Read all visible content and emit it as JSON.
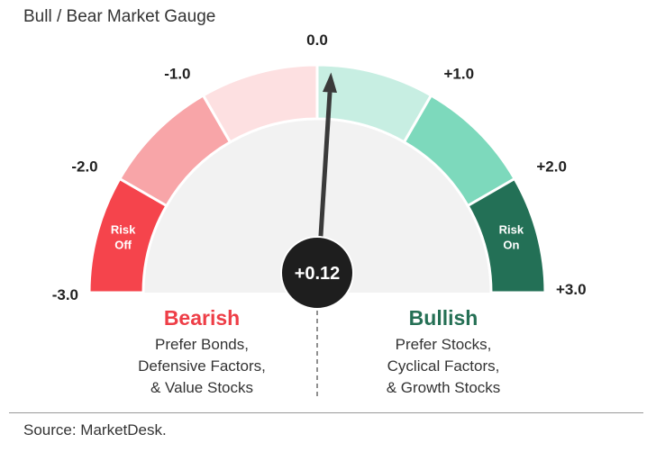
{
  "title": "Bull / Bear Market Gauge",
  "colors": {
    "segments": [
      "#f5444c",
      "#f8a5a8",
      "#fde0e1",
      "#c7eee2",
      "#7dd9bc",
      "#237056"
    ],
    "bearish": "#ee3e47",
    "bullish": "#257055",
    "inner": "#f2f2f2",
    "needle": "#3a3a3a",
    "value_bubble": "#1e1e1e"
  },
  "chart_data": {
    "type": "gauge",
    "title": "Bull / Bear Market Gauge",
    "min": -3.0,
    "max": 3.0,
    "value": 0.12,
    "value_label": "+0.12",
    "ticks": [
      {
        "value": -3.0,
        "label": "-3.0"
      },
      {
        "value": -2.0,
        "label": "-2.0"
      },
      {
        "value": -1.0,
        "label": "-1.0"
      },
      {
        "value": 0.0,
        "label": "0.0"
      },
      {
        "value": 1.0,
        "label": "+1.0"
      },
      {
        "value": 2.0,
        "label": "+2.0"
      },
      {
        "value": 3.0,
        "label": "+3.0"
      }
    ],
    "segments": [
      {
        "from": -3.0,
        "to": -2.0,
        "label": "Risk Off"
      },
      {
        "from": -2.0,
        "to": -1.0,
        "label": ""
      },
      {
        "from": -1.0,
        "to": 0.0,
        "label": ""
      },
      {
        "from": 0.0,
        "to": 1.0,
        "label": ""
      },
      {
        "from": 1.0,
        "to": 2.0,
        "label": ""
      },
      {
        "from": 2.0,
        "to": 3.0,
        "label": "Risk On"
      }
    ]
  },
  "bearish": {
    "heading": "Bearish",
    "description": "Prefer Bonds,\nDefensive Factors,\n& Value Stocks"
  },
  "bullish": {
    "heading": "Bullish",
    "description": "Prefer Stocks,\nCyclical Factors,\n& Growth Stocks"
  },
  "source": "Source: MarketDesk."
}
